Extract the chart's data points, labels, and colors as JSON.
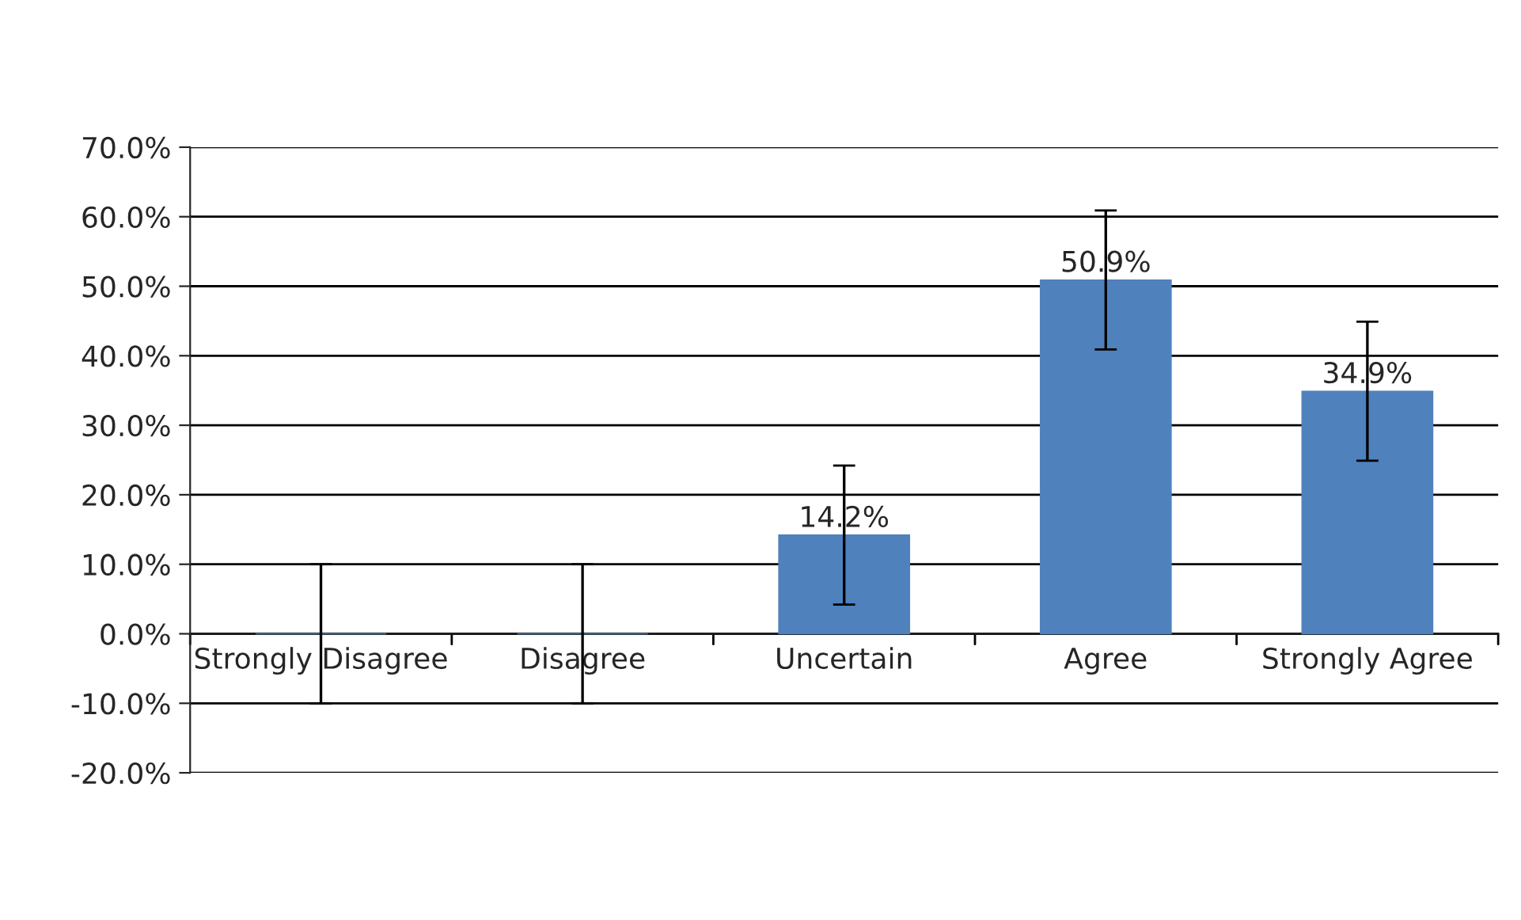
{
  "chart_data": {
    "type": "bar",
    "categories": [
      "Strongly Disagree",
      "Disagree",
      "Uncertain",
      "Agree",
      "Strongly Agree"
    ],
    "values": [
      0,
      0,
      14.2,
      50.9,
      34.9
    ],
    "errors": [
      10,
      10,
      10,
      10,
      10
    ],
    "value_labels": [
      null,
      null,
      "14.2%",
      "50.9%",
      "34.9%"
    ],
    "color": "#4f81bd",
    "ylim": [
      -20,
      70
    ],
    "yticks": [
      {
        "value": -20,
        "label": "-20.0%"
      },
      {
        "value": -10,
        "label": "-10.0%"
      },
      {
        "value": 0,
        "label": "0.0%"
      },
      {
        "value": 10,
        "label": "10.0%"
      },
      {
        "value": 20,
        "label": "20.0%"
      },
      {
        "value": 30,
        "label": "30.0%"
      },
      {
        "value": 40,
        "label": "40.0%"
      },
      {
        "value": 50,
        "label": "50.0%"
      },
      {
        "value": 60,
        "label": "60.0%"
      },
      {
        "value": 70,
        "label": "70.0%"
      }
    ],
    "grid": "y"
  }
}
